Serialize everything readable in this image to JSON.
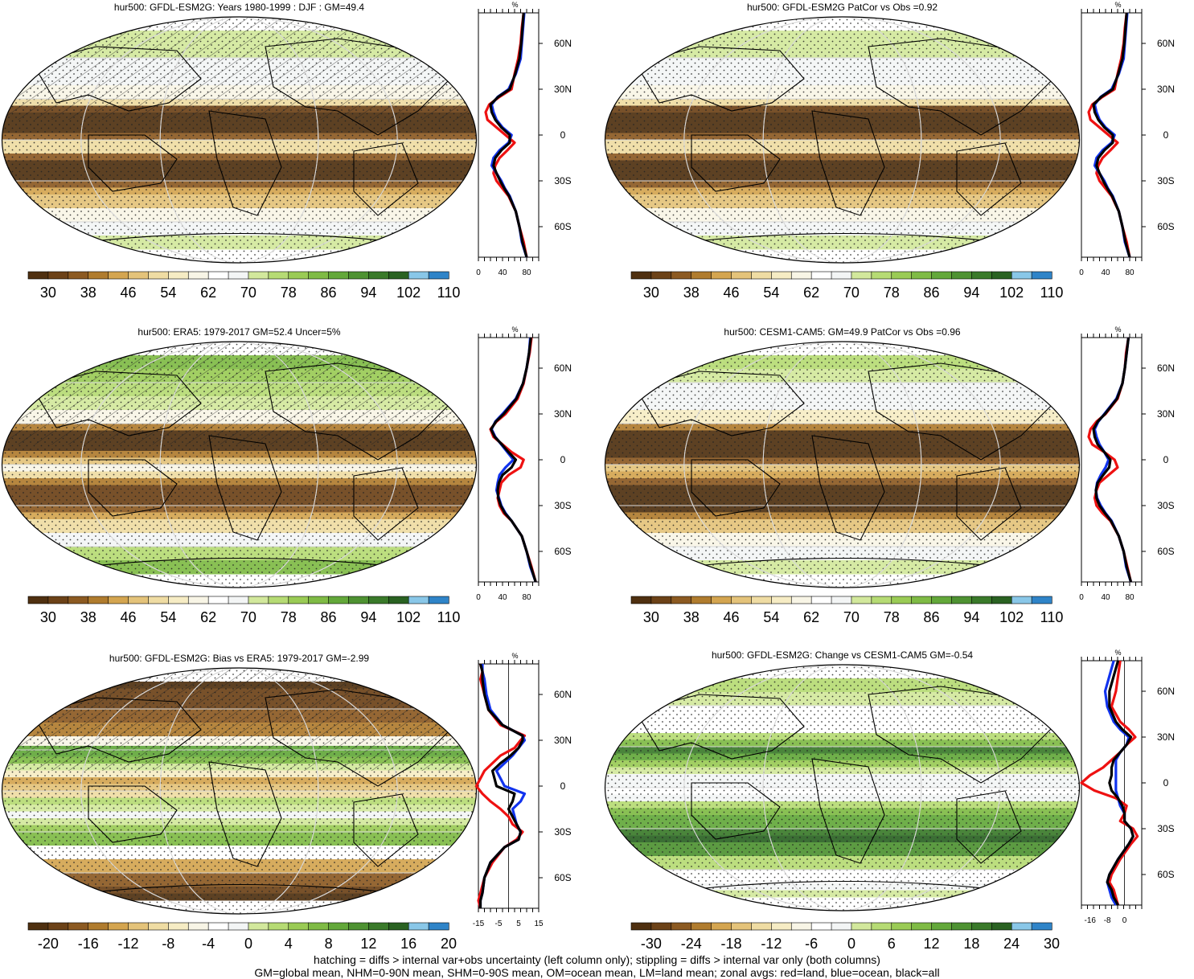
{
  "footer": {
    "line1": "hatching = diffs > internal var+obs uncertainty (left column only); stippling = diffs > internal var only (both columns)",
    "line2": "GM=global mean, NHM=0-90N mean, SHM=0-90S mean, OM=ocean mean, LM=land mean; zonal avgs: red=land, blue=ocean, black=all"
  },
  "colors": {
    "land": "#ee1111",
    "ocean": "#1133ee",
    "all": "#000000",
    "abs_scale": [
      "#4f3010",
      "#6c4218",
      "#8c5a22",
      "#b07c2e",
      "#d4a550",
      "#e4c37a",
      "#efdca3",
      "#f6ecc4",
      "#f8f5e6",
      "#ffffff",
      "#f3f5f5",
      "#d2e89c",
      "#b6db74",
      "#9acb55",
      "#7fbb45",
      "#63a83a",
      "#4e9232",
      "#3a7a2a",
      "#2a6222",
      "#89c7e8",
      "#2f84c8"
    ],
    "diff_scale": [
      "#4f3010",
      "#6c4218",
      "#8c5a22",
      "#b07c2e",
      "#d4a550",
      "#e4c37a",
      "#efdca3",
      "#f6ecc4",
      "#f8f5e6",
      "#ffffff",
      "#f3f5f5",
      "#d2e89c",
      "#b6db74",
      "#9acb55",
      "#7fbb45",
      "#63a83a",
      "#4e9232",
      "#3a7a2a",
      "#2a6222",
      "#89c7e8",
      "#2f84c8"
    ]
  },
  "chart_data": [
    {
      "type": "heatmap",
      "panel": "row1-left",
      "title": "hur500: GFDL-ESM2G: Years 1980-1999 : DJF : GM=49.4",
      "colorbar_ticks": [
        "30",
        "38",
        "46",
        "54",
        "62",
        "70",
        "78",
        "86",
        "94",
        "102",
        "110"
      ],
      "hatching": true,
      "profile": {
        "unit": "%",
        "xlim": [
          0,
          100
        ],
        "xticks": [
          "0",
          "40",
          "80"
        ],
        "ylabels": [
          "60N",
          "30N",
          "0",
          "30S",
          "60S"
        ],
        "lat": [
          80,
          70,
          60,
          50,
          40,
          30,
          25,
          20,
          15,
          10,
          5,
          0,
          -5,
          -10,
          -15,
          -20,
          -25,
          -30,
          -35,
          -40,
          -50,
          -60,
          -70,
          -80
        ],
        "series": [
          {
            "name": "land",
            "color_key": "land",
            "values": [
              75,
              72,
              70,
              66,
              60,
              55,
              35,
              18,
              12,
              15,
              30,
              45,
              60,
              48,
              35,
              28,
              25,
              30,
              40,
              50,
              62,
              68,
              75,
              80
            ]
          },
          {
            "name": "ocean",
            "color_key": "ocean",
            "values": [
              76,
              74,
              72,
              70,
              62,
              50,
              32,
              22,
              25,
              30,
              40,
              55,
              50,
              35,
              25,
              22,
              30,
              38,
              44,
              52,
              62,
              68,
              72,
              80
            ]
          },
          {
            "name": "all",
            "color_key": "all",
            "values": [
              75,
              73,
              71,
              68,
              61,
              52,
              33,
              20,
              22,
              28,
              38,
              52,
              52,
              38,
              28,
              25,
              30,
              36,
              43,
              51,
              62,
              68,
              73,
              80
            ]
          }
        ]
      }
    },
    {
      "type": "heatmap",
      "panel": "row1-right",
      "title": "hur500: GFDL-ESM2G PatCor vs Obs =0.92",
      "colorbar_ticks": [
        "30",
        "38",
        "46",
        "54",
        "62",
        "70",
        "78",
        "86",
        "94",
        "102",
        "110"
      ],
      "hatching": false,
      "profile": {
        "unit": "%",
        "xlim": [
          0,
          100
        ],
        "xticks": [
          "0",
          "40",
          "80"
        ],
        "ylabels": [
          "60N",
          "30N",
          "0",
          "30S",
          "60S"
        ],
        "lat": [
          80,
          70,
          60,
          50,
          40,
          30,
          25,
          20,
          15,
          10,
          5,
          0,
          -5,
          -10,
          -15,
          -20,
          -25,
          -30,
          -35,
          -40,
          -50,
          -60,
          -70,
          -80
        ],
        "series": [
          {
            "name": "land",
            "color_key": "land",
            "values": [
              75,
              72,
              70,
              66,
              60,
              55,
              35,
              18,
              12,
              15,
              30,
              45,
              60,
              48,
              35,
              28,
              25,
              30,
              40,
              50,
              62,
              68,
              75,
              80
            ]
          },
          {
            "name": "ocean",
            "color_key": "ocean",
            "values": [
              76,
              74,
              72,
              70,
              62,
              50,
              32,
              22,
              25,
              30,
              40,
              55,
              50,
              35,
              25,
              22,
              30,
              38,
              44,
              52,
              62,
              68,
              72,
              80
            ]
          },
          {
            "name": "all",
            "color_key": "all",
            "values": [
              75,
              73,
              71,
              68,
              61,
              52,
              33,
              20,
              22,
              28,
              38,
              52,
              52,
              38,
              28,
              25,
              30,
              36,
              43,
              51,
              62,
              68,
              73,
              80
            ]
          }
        ]
      }
    },
    {
      "type": "heatmap",
      "panel": "row2-left",
      "title": "hur500: ERA5: 1979-2017 GM=52.4 Uncer=5%",
      "colorbar_ticks": [
        "30",
        "38",
        "46",
        "54",
        "62",
        "70",
        "78",
        "86",
        "94",
        "102",
        "110"
      ],
      "hatching": true,
      "profile": {
        "unit": "%",
        "xlim": [
          0,
          100
        ],
        "xticks": [
          "0",
          "40",
          "80"
        ],
        "ylabels": [
          "60N",
          "30N",
          "0",
          "30S",
          "60S"
        ],
        "lat": [
          80,
          70,
          60,
          50,
          40,
          30,
          25,
          20,
          15,
          10,
          5,
          0,
          -5,
          -10,
          -15,
          -20,
          -25,
          -30,
          -35,
          -40,
          -50,
          -60,
          -70,
          -80
        ],
        "series": [
          {
            "name": "land",
            "color_key": "land",
            "values": [
              88,
              85,
              80,
              75,
              65,
              45,
              30,
              20,
              25,
              40,
              55,
              75,
              70,
              50,
              38,
              35,
              32,
              35,
              42,
              55,
              72,
              80,
              88,
              95
            ]
          },
          {
            "name": "ocean",
            "color_key": "ocean",
            "values": [
              86,
              84,
              80,
              74,
              62,
              40,
              28,
              22,
              28,
              38,
              48,
              58,
              45,
              35,
              32,
              30,
              34,
              38,
              45,
              55,
              72,
              80,
              86,
              95
            ]
          },
          {
            "name": "all",
            "color_key": "all",
            "values": [
              87,
              84,
              80,
              74,
              63,
              42,
              29,
              21,
              27,
              39,
              50,
              62,
              55,
              40,
              34,
              32,
              33,
              37,
              44,
              55,
              72,
              80,
              87,
              95
            ]
          }
        ]
      }
    },
    {
      "type": "heatmap",
      "panel": "row2-right",
      "title": "hur500: CESM1-CAM5: GM=49.9 PatCor vs Obs =0.96",
      "colorbar_ticks": [
        "30",
        "38",
        "46",
        "54",
        "62",
        "70",
        "78",
        "86",
        "94",
        "102",
        "110"
      ],
      "hatching": false,
      "profile": {
        "unit": "%",
        "xlim": [
          0,
          100
        ],
        "xticks": [
          "0",
          "40",
          "80"
        ],
        "ylabels": [
          "60N",
          "30N",
          "0",
          "30S",
          "60S"
        ],
        "lat": [
          80,
          70,
          60,
          50,
          40,
          30,
          25,
          20,
          15,
          10,
          5,
          0,
          -5,
          -10,
          -15,
          -20,
          -25,
          -30,
          -35,
          -40,
          -50,
          -60,
          -70,
          -80
        ],
        "series": [
          {
            "name": "land",
            "color_key": "land",
            "values": [
              78,
              74,
              72,
              68,
              60,
              40,
              25,
              15,
              12,
              18,
              38,
              55,
              60,
              45,
              30,
              25,
              22,
              25,
              35,
              48,
              62,
              70,
              76,
              82
            ]
          },
          {
            "name": "ocean",
            "color_key": "ocean",
            "values": [
              78,
              75,
              72,
              68,
              58,
              38,
              28,
              22,
              25,
              30,
              38,
              45,
              40,
              32,
              26,
              24,
              26,
              32,
              40,
              50,
              62,
              70,
              74,
              82
            ]
          },
          {
            "name": "all",
            "color_key": "all",
            "values": [
              78,
              75,
              72,
              68,
              59,
              39,
              27,
              20,
              22,
              27,
              38,
              48,
              46,
              36,
              27,
              24,
              25,
              30,
              39,
              49,
              62,
              70,
              75,
              82
            ]
          }
        ]
      }
    },
    {
      "type": "heatmap",
      "panel": "row3-left",
      "title": "hur500: GFDL-ESM2G: Bias vs ERA5: 1979-2017 GM=-2.99",
      "colorbar_ticks": [
        "-20",
        "-16",
        "-12",
        "-8",
        "-4",
        "0",
        "4",
        "8",
        "12",
        "16",
        "20"
      ],
      "hatching": true,
      "profile": {
        "unit": "%",
        "xlim": [
          -15,
          15
        ],
        "xticks": [
          "-15",
          "-5",
          "5",
          "15"
        ],
        "zero_line": 0,
        "ylabels": [
          "60N",
          "30N",
          "0",
          "30S",
          "60S"
        ],
        "lat": [
          80,
          75,
          70,
          60,
          50,
          40,
          33,
          30,
          25,
          20,
          15,
          10,
          5,
          0,
          -5,
          -10,
          -15,
          -20,
          -25,
          -30,
          -35,
          -40,
          -50,
          -60,
          -70,
          -75,
          -80
        ],
        "series": [
          {
            "name": "land",
            "color_key": "land",
            "values": [
              -14,
              -13,
              -14,
              -12,
              -10,
              -4,
              8,
              6,
              3,
              -4,
              -8,
              -12,
              -14,
              -16,
              -13,
              -9,
              -4,
              0,
              2,
              7,
              4,
              -2,
              -8,
              -12,
              -14,
              -15,
              -14
            ]
          },
          {
            "name": "ocean",
            "color_key": "ocean",
            "values": [
              -13,
              -13,
              -12,
              -11,
              -9,
              -3,
              7,
              8,
              5,
              2,
              -2,
              -6,
              -4,
              -2,
              8,
              6,
              2,
              3,
              4,
              6,
              5,
              -2,
              -9,
              -12,
              -13,
              -14,
              -14
            ]
          },
          {
            "name": "all",
            "color_key": "all",
            "values": [
              -14,
              -13,
              -13,
              -12,
              -10,
              -3,
              7,
              7,
              5,
              1,
              -4,
              -8,
              -7,
              -6,
              3,
              2,
              0,
              2,
              4,
              6,
              5,
              -2,
              -9,
              -12,
              -13,
              -14,
              -14
            ]
          }
        ]
      }
    },
    {
      "type": "heatmap",
      "panel": "row3-right",
      "title": "hur500: GFDL-ESM2G: Change vs CESM1-CAM5 GM=-0.54",
      "colorbar_ticks": [
        "-30",
        "-24",
        "-18",
        "-12",
        "-6",
        "0",
        "6",
        "12",
        "18",
        "24",
        "30"
      ],
      "hatching": false,
      "profile": {
        "unit": "%",
        "xlim": [
          -20,
          8
        ],
        "xticks": [
          "-16",
          "-8",
          "0"
        ],
        "zero_line": 0,
        "ylabels": [
          "60N",
          "30N",
          "0",
          "30S",
          "60S"
        ],
        "lat": [
          80,
          70,
          60,
          50,
          40,
          35,
          30,
          25,
          20,
          15,
          10,
          5,
          0,
          -5,
          -10,
          -15,
          -20,
          -25,
          -30,
          -35,
          -40,
          -50,
          -60,
          -65,
          -70,
          -75,
          -80
        ],
        "series": [
          {
            "name": "land",
            "color_key": "land",
            "values": [
              -2,
              -3,
              -4,
              -6,
              -2,
              2,
              5,
              1,
              -2,
              -6,
              -10,
              -16,
              -20,
              -14,
              -4,
              1,
              0,
              -2,
              4,
              6,
              3,
              -2,
              -6,
              -7,
              -5,
              -4,
              -3
            ]
          },
          {
            "name": "ocean",
            "color_key": "ocean",
            "values": [
              -5,
              -7,
              -9,
              -8,
              -5,
              -2,
              2,
              1,
              -2,
              -4,
              -4,
              -4,
              -4,
              -4,
              -3,
              -2,
              0,
              0,
              3,
              4,
              2,
              -3,
              -7,
              -8,
              -7,
              -6,
              -4
            ]
          },
          {
            "name": "all",
            "color_key": "all",
            "values": [
              -3,
              -5,
              -7,
              -7,
              -4,
              -1,
              3,
              1,
              -2,
              -5,
              -6,
              -6,
              -7,
              -6,
              -3,
              -1,
              0,
              0,
              3,
              4,
              2,
              -3,
              -7,
              -8,
              -6,
              -5,
              -3
            ]
          }
        ]
      }
    }
  ]
}
